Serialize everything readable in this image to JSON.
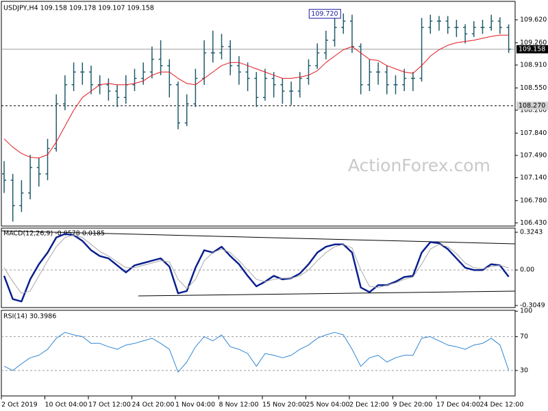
{
  "chart_data": [
    {
      "type": "ohlc",
      "title": "USDJPY,H4  109.158 109.178 109.107 109.158",
      "watermark": "ActionForex.com",
      "categories": [
        "2 Oct 2019",
        null,
        null,
        null,
        null,
        "10 Oct 04:00",
        null,
        null,
        null,
        null,
        "17 Oct 12:00",
        null,
        null,
        null,
        null,
        "24 Oct 20:00",
        null,
        null,
        null,
        null,
        "1 Nov 04:00",
        null,
        null,
        null,
        null,
        "8 Nov 12:00",
        null,
        null,
        null,
        null,
        "15 Nov 20:00",
        null,
        null,
        null,
        null,
        "25 Nov 04:00",
        null,
        null,
        null,
        null,
        "2 Dec 12:00",
        null,
        null,
        null,
        null,
        "9 Dec 20:00",
        null,
        null,
        null,
        null,
        "17 Dec 04:00",
        null,
        null,
        null,
        null,
        "24 Dec 12:00",
        null,
        null,
        null
      ],
      "color": "#1f5a6c",
      "open": [
        107.2,
        107.1,
        106.7,
        106.9,
        107.3,
        107.2,
        107.6,
        108.3,
        108.6,
        108.8,
        108.8,
        108.6,
        108.6,
        108.5,
        108.4,
        108.6,
        108.7,
        108.8,
        109.0,
        108.9,
        108.6,
        108.0,
        108.3,
        108.7,
        109.1,
        109.1,
        109.2,
        108.9,
        108.8,
        108.7,
        108.4,
        108.7,
        108.6,
        108.5,
        108.5,
        108.7,
        108.9,
        109.1,
        109.3,
        109.5,
        109.6,
        109.2,
        108.6,
        108.8,
        108.8,
        108.6,
        108.6,
        108.7,
        108.7,
        109.5,
        109.6,
        109.6,
        109.5,
        109.5,
        109.4,
        109.5,
        109.5,
        109.6,
        109.5
      ],
      "high": [
        107.4,
        107.2,
        107.1,
        107.5,
        107.45,
        107.75,
        108.45,
        108.75,
        108.95,
        108.95,
        108.9,
        108.75,
        108.7,
        108.6,
        108.75,
        108.85,
        108.95,
        109.2,
        109.3,
        109.0,
        108.65,
        108.45,
        108.85,
        109.3,
        109.45,
        109.4,
        109.3,
        109.05,
        108.95,
        108.8,
        108.85,
        108.8,
        108.7,
        108.65,
        108.8,
        109.0,
        109.25,
        109.45,
        109.65,
        109.72,
        109.7,
        109.25,
        109.0,
        108.95,
        108.9,
        108.75,
        108.85,
        108.8,
        109.65,
        109.7,
        109.68,
        109.68,
        109.62,
        109.55,
        109.6,
        109.62,
        109.7,
        109.66,
        109.55
      ],
      "low": [
        106.9,
        106.45,
        106.6,
        106.8,
        107.0,
        107.1,
        107.55,
        108.2,
        108.5,
        108.6,
        108.45,
        108.45,
        108.35,
        108.25,
        108.3,
        108.5,
        108.6,
        108.7,
        108.75,
        108.4,
        107.9,
        107.95,
        108.25,
        108.6,
        108.95,
        109.0,
        108.75,
        108.6,
        108.5,
        108.25,
        108.35,
        108.4,
        108.3,
        108.28,
        108.4,
        108.6,
        108.85,
        109.0,
        109.2,
        109.4,
        109.1,
        108.45,
        108.5,
        108.6,
        108.45,
        108.45,
        108.5,
        108.5,
        108.65,
        109.4,
        109.45,
        109.4,
        109.35,
        109.25,
        109.35,
        109.4,
        109.45,
        109.4,
        109.1
      ],
      "close": [
        107.1,
        106.7,
        106.9,
        107.3,
        107.2,
        107.6,
        108.3,
        108.6,
        108.8,
        108.8,
        108.6,
        108.6,
        108.5,
        108.4,
        108.6,
        108.7,
        108.8,
        109.0,
        108.9,
        108.6,
        108.0,
        108.3,
        108.7,
        109.1,
        109.1,
        109.2,
        108.9,
        108.8,
        108.7,
        108.4,
        108.7,
        108.6,
        108.5,
        108.5,
        108.7,
        108.9,
        109.1,
        109.3,
        109.5,
        109.6,
        109.2,
        108.6,
        108.8,
        108.8,
        108.6,
        108.6,
        108.7,
        108.7,
        109.5,
        109.6,
        109.6,
        109.5,
        109.5,
        109.4,
        109.5,
        109.5,
        109.6,
        109.5,
        109.158
      ],
      "series": [
        {
          "color": "#e3161e",
          "line_width": 1,
          "values": [
            107.75,
            107.62,
            107.52,
            107.46,
            107.45,
            107.5,
            107.7,
            107.95,
            108.2,
            108.4,
            108.5,
            108.6,
            108.62,
            108.6,
            108.6,
            108.62,
            108.66,
            108.75,
            108.8,
            108.8,
            108.7,
            108.62,
            108.6,
            108.7,
            108.8,
            108.9,
            108.95,
            108.95,
            108.9,
            108.85,
            108.8,
            108.75,
            108.7,
            108.7,
            108.72,
            108.75,
            108.82,
            108.95,
            109.05,
            109.15,
            109.2,
            109.1,
            109.0,
            108.98,
            108.9,
            108.85,
            108.8,
            108.78,
            108.9,
            109.05,
            109.15,
            109.22,
            109.26,
            109.28,
            109.3,
            109.33,
            109.36,
            109.38,
            109.38
          ]
        }
      ],
      "ylim": [
        106.38,
        109.91
      ],
      "yticks": [
        {
          "value": 109.62,
          "label": "109.620"
        },
        {
          "value": 109.26,
          "label": "109.260"
        },
        {
          "value": 108.91,
          "label": "108.910"
        },
        {
          "value": 108.55,
          "label": "108.550"
        },
        {
          "value": 108.2,
          "label": "108.200"
        },
        {
          "value": 107.84,
          "label": "107.840"
        },
        {
          "value": 107.49,
          "label": "107.490"
        },
        {
          "value": 107.14,
          "label": "107.140"
        },
        {
          "value": 106.78,
          "label": "106.780"
        },
        {
          "value": 106.43,
          "label": "106.430"
        }
      ],
      "hlines": [
        {
          "value": 108.27,
          "label": "108.270",
          "dashed": true
        },
        {
          "value": 109.158,
          "label": "109.158",
          "dashed": false
        }
      ],
      "annotations": [
        {
          "value": 109.72,
          "label": "109.720"
        }
      ]
    },
    {
      "type": "line",
      "title": "MACD(12,26,9) -0.0578 0.0185",
      "series": [
        {
          "color": "#0a1f8f",
          "line_width": 2.5,
          "values": [
            -0.05,
            -0.25,
            -0.27,
            -0.08,
            0.05,
            0.15,
            0.28,
            0.31,
            0.3,
            0.25,
            0.17,
            0.12,
            0.1,
            0.04,
            -0.02,
            0.04,
            0.06,
            0.08,
            0.1,
            0.03,
            -0.2,
            -0.18,
            0.02,
            0.17,
            0.15,
            0.2,
            0.12,
            0.05,
            -0.05,
            -0.14,
            -0.1,
            -0.05,
            -0.08,
            -0.07,
            -0.03,
            0.05,
            0.15,
            0.2,
            0.22,
            0.22,
            0.15,
            -0.15,
            -0.19,
            -0.13,
            -0.13,
            -0.1,
            -0.06,
            -0.05,
            0.15,
            0.24,
            0.23,
            0.18,
            0.1,
            0.02,
            0.0,
            0.0,
            0.05,
            0.04,
            -0.0578
          ]
        },
        {
          "color": "#a8a8a8",
          "line_width": 1,
          "values": [
            0.02,
            -0.1,
            -0.2,
            -0.18,
            -0.05,
            0.08,
            0.2,
            0.28,
            0.3,
            0.28,
            0.22,
            0.16,
            0.12,
            0.07,
            0.02,
            0.02,
            0.04,
            0.06,
            0.08,
            0.07,
            -0.08,
            -0.16,
            -0.08,
            0.08,
            0.15,
            0.18,
            0.15,
            0.08,
            0.0,
            -0.08,
            -0.1,
            -0.08,
            -0.07,
            -0.07,
            -0.05,
            0.0,
            0.08,
            0.15,
            0.2,
            0.22,
            0.19,
            0.0,
            -0.14,
            -0.15,
            -0.13,
            -0.11,
            -0.08,
            -0.06,
            0.05,
            0.18,
            0.22,
            0.2,
            0.14,
            0.06,
            0.02,
            0.01,
            0.03,
            0.04,
            0.0185
          ]
        }
      ],
      "ylim": [
        -0.3225,
        0.36
      ],
      "yticks": [
        0.3243,
        {
          "value": 0,
          "label": "0.00"
        },
        -0.3049
      ],
      "levels": [
        0
      ]
    },
    {
      "type": "line",
      "title": "RSI(14) 30.3986",
      "series": [
        {
          "color": "#2f86d4",
          "line_width": 1,
          "values": [
            35,
            30,
            38,
            45,
            48,
            55,
            68,
            75,
            72,
            70,
            62,
            62,
            58,
            55,
            60,
            62,
            65,
            68,
            62,
            55,
            28,
            40,
            58,
            70,
            65,
            72,
            58,
            55,
            50,
            35,
            50,
            48,
            45,
            48,
            55,
            60,
            68,
            72,
            75,
            72,
            55,
            35,
            45,
            48,
            40,
            45,
            48,
            48,
            68,
            70,
            65,
            60,
            58,
            55,
            60,
            62,
            68,
            60,
            30.3986
          ]
        }
      ],
      "ylim": [
        0,
        101
      ],
      "yticks": [
        100,
        70,
        30
      ],
      "levels": [
        70,
        30
      ]
    }
  ]
}
